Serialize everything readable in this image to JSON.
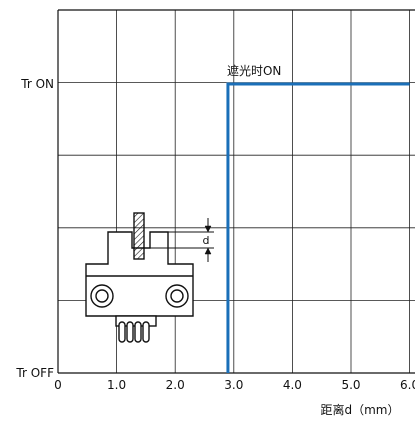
{
  "chart_data": {
    "type": "line",
    "title": "",
    "xlabel": "距离d（mm）",
    "ylabel": "",
    "xlim": [
      0,
      6.0
    ],
    "ylim": [
      0,
      1
    ],
    "x_ticks": [
      {
        "value": 0,
        "label": "0"
      },
      {
        "value": 1.0,
        "label": "1.0"
      },
      {
        "value": 2.0,
        "label": "2.0"
      },
      {
        "value": 3.0,
        "label": "3.0"
      },
      {
        "value": 4.0,
        "label": "4.0"
      },
      {
        "value": 5.0,
        "label": "5.0"
      },
      {
        "value": 6.0,
        "label": "6.0"
      }
    ],
    "y_ticks": [
      {
        "value": 0,
        "label": "Tr OFF"
      },
      {
        "value": 1,
        "label": "Tr ON"
      }
    ],
    "grid": true,
    "series": [
      {
        "name": "",
        "color": "#1a6fb8",
        "points": [
          {
            "x": 2.9,
            "y": 0
          },
          {
            "x": 2.9,
            "y": 1
          },
          {
            "x": 6.0,
            "y": 1
          }
        ]
      }
    ],
    "annotations": [
      {
        "text": "遮光时ON",
        "x": 2.9,
        "y": 1
      }
    ],
    "diagram": {
      "dimension_label": "d"
    }
  }
}
